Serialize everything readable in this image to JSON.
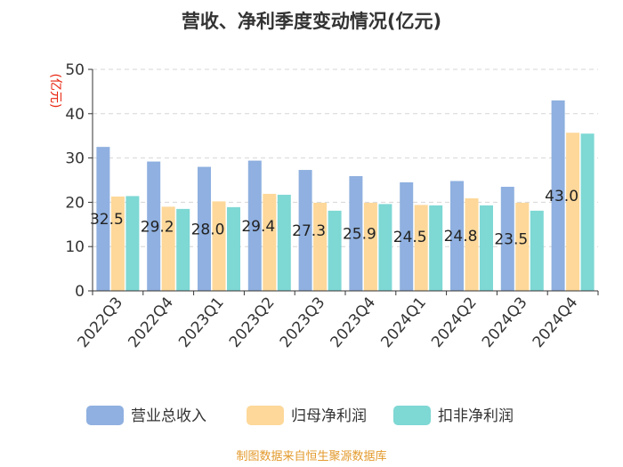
{
  "chart_data": {
    "type": "bar",
    "title": "营收、净利季度变动情况(亿元)",
    "ylabel": "(亿元)",
    "ylim": [
      0,
      50
    ],
    "yticks": [
      0,
      10,
      20,
      30,
      40,
      50
    ],
    "categories": [
      "2022Q3",
      "2022Q4",
      "2023Q1",
      "2023Q2",
      "2023Q3",
      "2023Q4",
      "2024Q1",
      "2024Q2",
      "2024Q3",
      "2024Q4"
    ],
    "series": [
      {
        "name": "营业总收入",
        "color": "#8fb0e0",
        "values": [
          32.5,
          29.2,
          28.0,
          29.4,
          27.3,
          25.9,
          24.5,
          24.8,
          23.5,
          43.0
        ]
      },
      {
        "name": "归母净利润",
        "color": "#fdd89a",
        "values": [
          21.3,
          19.0,
          20.2,
          21.9,
          19.9,
          19.9,
          19.4,
          20.9,
          19.9,
          35.7
        ]
      },
      {
        "name": "扣非净利润",
        "color": "#7ed8d4",
        "values": [
          21.4,
          18.5,
          18.9,
          21.7,
          18.1,
          19.6,
          19.3,
          19.3,
          18.1,
          35.5
        ]
      }
    ],
    "data_labels": [
      "32.5",
      "29.2",
      "28.0",
      "29.4",
      "27.3",
      "25.9",
      "24.5",
      "24.8",
      "23.5",
      "43.0"
    ],
    "legend_position": "bottom",
    "grid": true
  },
  "footer": {
    "source": "制图数据来自恒生聚源数据库"
  }
}
